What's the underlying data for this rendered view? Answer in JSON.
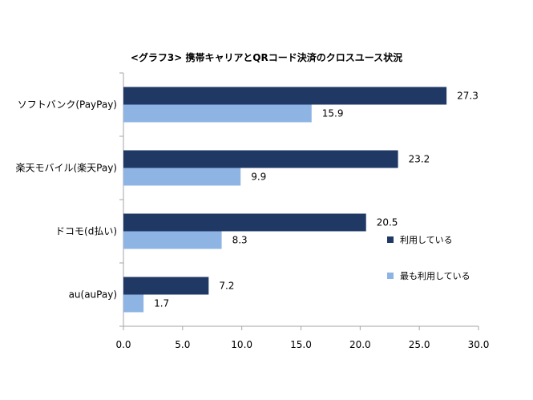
{
  "chart_data": {
    "type": "bar",
    "orientation": "horizontal",
    "title": "<グラフ3> 携帯キャリアとQRコード決済のクロスユース状況",
    "categories": [
      "ソフトバンク(PayPay)",
      "楽天モバイル(楽天Pay)",
      "ドコモ(d払い)",
      "au(auPay)"
    ],
    "series": [
      {
        "name": "利用している",
        "values": [
          27.3,
          23.2,
          20.5,
          7.2
        ],
        "color": "#1f3864"
      },
      {
        "name": "最も利用している",
        "values": [
          15.9,
          9.9,
          8.3,
          1.7
        ],
        "color": "#8eb4e3"
      }
    ],
    "xlim": [
      0,
      30
    ],
    "x_ticks": [
      "0.0",
      "5.0",
      "10.0",
      "15.0",
      "20.0",
      "25.0",
      "30.0"
    ],
    "xlabel": "",
    "ylabel": "",
    "grid": false,
    "legend_position": "right"
  }
}
